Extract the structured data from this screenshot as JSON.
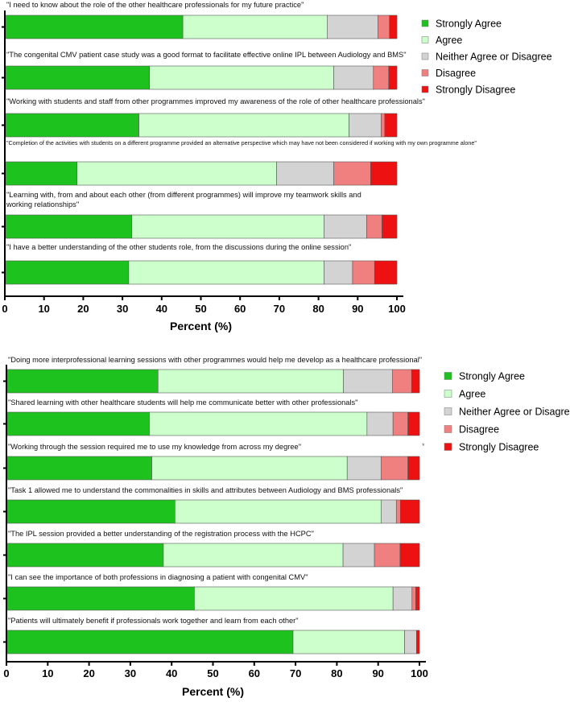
{
  "chart_data": [
    {
      "type": "bar",
      "orientation": "horizontal",
      "stacked": true,
      "xlabel": "Percent (%)",
      "xlim": [
        0,
        100
      ],
      "xticks": [
        "0",
        "10",
        "20",
        "30",
        "40",
        "50",
        "60",
        "70",
        "80",
        "90",
        "100"
      ],
      "legend": [
        "Strongly Agree",
        "Agree",
        "Neither Agree or Disagree",
        "Disagree",
        "Strongly Disagree"
      ],
      "legend_position": "right",
      "categories": [
        "\"I need to know about the role of the other healthcare professionals for my future practice\"",
        "\"The congenital CMV patient case study was a good format to facilitate effective online IPL between Audiology and BMS\"",
        "\"Working with students and staff from other programmes improved my awareness of the role of other healthcare professionals\"",
        "\"Completion of the activities with students on a different programme provided an alternative perspective which may have not been considered if working with my own programme alone\"",
        "\"Learning with, from and about each other (from different programmes) will improve my teamwork skills and working relationships\"",
        "\"I have a better understanding of the other students role, from the discussions during the online session\""
      ],
      "series": [
        {
          "name": "Strongly Agree",
          "values": [
            45.4,
            36.9,
            34.2,
            18.4,
            32.4,
            31.6
          ]
        },
        {
          "name": "Agree",
          "values": [
            36.8,
            47.0,
            53.6,
            50.9,
            49.0,
            49.8
          ]
        },
        {
          "name": "Neither Agree or Disagree",
          "values": [
            13.0,
            10.1,
            8.2,
            14.6,
            10.9,
            7.3
          ]
        },
        {
          "name": "Disagree",
          "values": [
            2.9,
            3.9,
            0.9,
            9.4,
            3.9,
            5.6
          ]
        },
        {
          "name": "Strongly Disagree",
          "values": [
            1.9,
            2.1,
            3.1,
            6.7,
            3.8,
            5.7
          ]
        }
      ]
    },
    {
      "type": "bar",
      "orientation": "horizontal",
      "stacked": true,
      "xlabel": "Percent (%)",
      "xlim": [
        0,
        100
      ],
      "xticks": [
        "0",
        "10",
        "20",
        "30",
        "40",
        "50",
        "60",
        "70",
        "80",
        "90",
        "100"
      ],
      "legend": [
        "Strongly Agree",
        "Agree",
        "Neither Agree or Disagree",
        "Disagree",
        "Strongly Disagree"
      ],
      "legend_position": "right",
      "annotation": "*",
      "categories": [
        "\"Doing more interprofessional learning sessions with other programmes would help me develop as a healthcare professional\"",
        "\"Shared learning with other healthcare students will help me communicate better with other professionals\"",
        "\"Working through the session required me to use my knowledge from across my degree\"",
        "\"Task 1 allowed me to understand the commonalities in skills and attributes between Audiology and BMS professionals\"",
        "\"The IPL session provided a better understanding of the registration process with the HCPC\"",
        "\"I can see the importance of both professions in diagnosing a patient with congenital CMV\"",
        "\"Patients will ultimately benefit if professionals work together and learn from each other\""
      ],
      "series": [
        {
          "name": "Strongly Agree",
          "values": [
            36.7,
            34.6,
            35.2,
            40.8,
            38.0,
            45.5,
            69.4
          ]
        },
        {
          "name": "Agree",
          "values": [
            44.9,
            52.7,
            47.3,
            49.9,
            43.5,
            48.1,
            27.0
          ]
        },
        {
          "name": "Neither Agree or Disagree",
          "values": [
            11.9,
            6.3,
            8.2,
            3.7,
            7.6,
            4.6,
            2.9
          ]
        },
        {
          "name": "Disagree",
          "values": [
            4.6,
            3.6,
            6.5,
            1.0,
            6.2,
            0.9,
            0.0
          ]
        },
        {
          "name": "Strongly Disagree",
          "values": [
            1.9,
            2.8,
            2.8,
            4.6,
            4.7,
            0.9,
            0.7
          ]
        }
      ]
    }
  ],
  "colors": {
    "Strongly Agree": "#1ec21e",
    "Agree": "#ccffcc",
    "Neither Agree or Disagree": "#d3d3d3",
    "Disagree": "#f08080",
    "Strongly Disagree": "#ee1111"
  }
}
